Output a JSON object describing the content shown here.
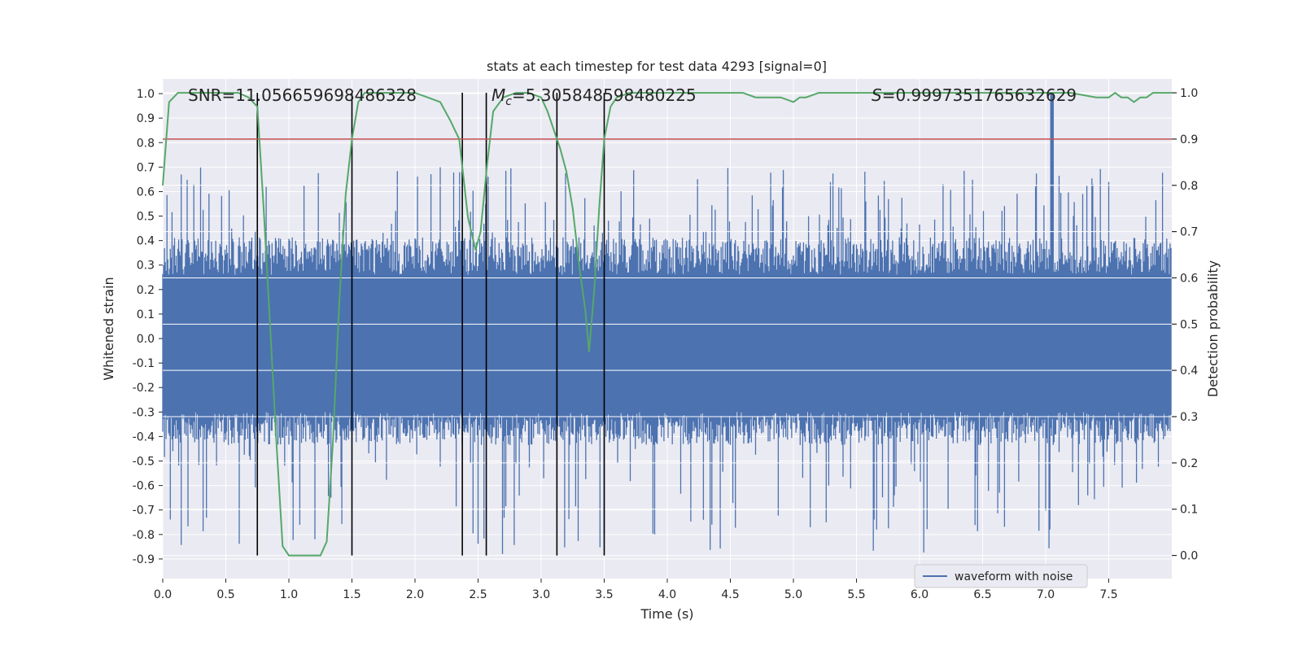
{
  "chart_data": {
    "type": "line",
    "title": "stats at each timestep for test data 4293 [signal=0]",
    "xlabel": "Time (s)",
    "ylabel": "Whitened strain",
    "y2label": "Detection probability",
    "xlim": [
      0.0,
      8.0
    ],
    "ylim": [
      -0.98,
      1.06
    ],
    "y2lim": [
      -0.05,
      1.03
    ],
    "xticks": [
      "0.0",
      "0.5",
      "1.0",
      "1.5",
      "2.0",
      "2.5",
      "3.0",
      "3.5",
      "4.0",
      "4.5",
      "5.0",
      "5.5",
      "6.0",
      "6.5",
      "7.0",
      "7.5"
    ],
    "yticks": [
      "1.0",
      "0.9",
      "0.8",
      "0.7",
      "0.6",
      "0.5",
      "0.4",
      "0.3",
      "0.2",
      "0.1",
      "0.0",
      "-0.1",
      "-0.2",
      "-0.3",
      "-0.4",
      "-0.5",
      "-0.6",
      "-0.7",
      "-0.8",
      "-0.9"
    ],
    "y2ticks": [
      "1.0",
      "0.9",
      "0.8",
      "0.7",
      "0.6",
      "0.5",
      "0.4",
      "0.3",
      "0.2",
      "0.1",
      "0.0"
    ],
    "annotations": {
      "snr": "SNR=11.056659698486328",
      "mc_symbol": "M",
      "mc_sub": "c",
      "mc_value": "=5.305848598480225",
      "s_symbol": "S",
      "s_value": "=0.9997351765632629"
    },
    "legend": {
      "label": "waveform with noise",
      "loc": "lower-right"
    },
    "threshold_y2": 0.9,
    "vlines_x": [
      0.75,
      1.5,
      2.375,
      2.565,
      3.125,
      3.5
    ],
    "waveform_envelope": {
      "name": "waveform with noise",
      "approx_positive_max": 0.7,
      "approx_negative_min": -0.88,
      "spike": {
        "x": 7.05,
        "y": 1.0
      }
    },
    "series": [
      {
        "name": "",
        "axis": "y2",
        "x": [
          0.0,
          0.05,
          0.12,
          0.2,
          0.3,
          0.4,
          0.5,
          0.6,
          0.68,
          0.75,
          0.8,
          0.85,
          0.9,
          0.95,
          1.0,
          1.05,
          1.1,
          1.15,
          1.2,
          1.25,
          1.3,
          1.35,
          1.4,
          1.45,
          1.5,
          1.55,
          1.6,
          1.65,
          1.7,
          1.8,
          1.9,
          2.0,
          2.1,
          2.2,
          2.28,
          2.35,
          2.42,
          2.48,
          2.52,
          2.57,
          2.62,
          2.7,
          2.8,
          2.9,
          3.0,
          3.05,
          3.1,
          3.15,
          3.2,
          3.25,
          3.3,
          3.35,
          3.38,
          3.42,
          3.46,
          3.5,
          3.55,
          3.6,
          3.7,
          3.8,
          3.9,
          4.0,
          4.2,
          4.4,
          4.6,
          4.7,
          4.8,
          4.9,
          5.0,
          5.05,
          5.1,
          5.2,
          5.3,
          5.5,
          6.0,
          6.5,
          7.0,
          7.2,
          7.4,
          7.5,
          7.55,
          7.6,
          7.65,
          7.7,
          7.75,
          7.8,
          7.85,
          8.0
        ],
        "y": [
          0.8,
          0.98,
          1.0,
          1.0,
          1.0,
          1.0,
          1.0,
          1.0,
          0.99,
          0.97,
          0.75,
          0.5,
          0.25,
          0.02,
          -0.0,
          -0.0,
          -0.0,
          -0.0,
          -0.0,
          0.0,
          0.03,
          0.25,
          0.55,
          0.78,
          0.9,
          0.98,
          1.0,
          1.0,
          1.0,
          1.0,
          1.0,
          1.0,
          0.99,
          0.98,
          0.94,
          0.9,
          0.73,
          0.66,
          0.7,
          0.84,
          0.96,
          0.99,
          1.0,
          1.0,
          0.99,
          0.96,
          0.92,
          0.88,
          0.83,
          0.75,
          0.63,
          0.53,
          0.44,
          0.57,
          0.75,
          0.9,
          0.97,
          0.99,
          1.0,
          1.0,
          1.0,
          1.0,
          1.0,
          1.0,
          1.0,
          0.99,
          0.99,
          0.99,
          0.98,
          0.99,
          0.99,
          1.0,
          1.0,
          1.0,
          1.0,
          1.0,
          1.0,
          1.0,
          0.99,
          0.99,
          1.0,
          0.99,
          0.99,
          0.98,
          0.99,
          0.99,
          1.0,
          1.0
        ]
      }
    ]
  }
}
